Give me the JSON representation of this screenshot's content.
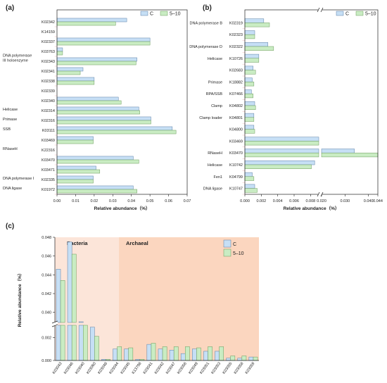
{
  "colors": {
    "C": "#c6dff5",
    "T": "#c9ecc3",
    "C_stroke": "#5b7fa6",
    "T_stroke": "#6b9a5a",
    "bacteria_bg": "#fce5d9",
    "archaea_bg": "#fbd6bf"
  },
  "chart_data": [
    {
      "panel": "(a)",
      "type": "bar",
      "orientation": "horizontal",
      "xlabel": "Relative abundance（%）",
      "xlim": [
        0,
        0.07
      ],
      "xticks": [
        "0.00",
        "0.01",
        "0.02",
        "0.03",
        "0.04",
        "0.05",
        "0.06",
        "0.07"
      ],
      "legend": [
        "C",
        "5–10"
      ],
      "legend_position": "top-right",
      "categories": [
        "K02342",
        "K14159",
        "K02337",
        "K03763",
        "K02343",
        "K02341",
        "K02338",
        "K02339",
        "K02340",
        "K02314",
        "K02316",
        "K03111",
        "K03469",
        "K22316",
        "K03470",
        "K03471",
        "K02335",
        "K01972"
      ],
      "groups": [
        {
          "label": "DNA polymerase\nIII holoenzyme",
          "at": "K02343"
        },
        {
          "label": "Helicase",
          "at": "K02314"
        },
        {
          "label": "Primase",
          "at": "K02316"
        },
        {
          "label": "SSB",
          "at": "K03111"
        },
        {
          "label": "RNaseH",
          "at": "K22316"
        },
        {
          "label": "DNA polymerase I",
          "at": "K02335"
        },
        {
          "label": "DNA ligase",
          "at": "K01972"
        }
      ],
      "series": [
        {
          "name": "C",
          "values": [
            0.0375,
            0,
            0.05,
            0.003,
            0.043,
            0.014,
            0.02,
            0,
            0.033,
            0.044,
            0.0505,
            0.062,
            0.0195,
            0,
            0.041,
            0.021,
            0.0195,
            0.041
          ]
        },
        {
          "name": "5–10",
          "values": [
            0.0315,
            0,
            0.05,
            0.003,
            0.0425,
            0.0125,
            0.02,
            0,
            0.0345,
            0.0445,
            0.0505,
            0.064,
            0.0195,
            0,
            0.044,
            0.023,
            0.0195,
            0.043
          ]
        }
      ]
    },
    {
      "panel": "(b)",
      "type": "bar",
      "orientation": "horizontal",
      "xlabel": "Relative abundance（%）",
      "axis_break": [
        0.009,
        0.02
      ],
      "xticks": [
        "0.000",
        "0.002",
        "0.004",
        "0.006",
        "0.008",
        "0.020",
        "0.030",
        "0.040",
        "0.044"
      ],
      "legend": [
        "C",
        "5–10"
      ],
      "legend_position": "top-right",
      "categories": [
        "K02319",
        "K02323",
        "K02322",
        "K10726",
        "K02683",
        "K18882",
        "K07466",
        "K04802",
        "K04801",
        "K04800",
        "K03469",
        "K03470",
        "K10742",
        "K04799",
        "K10747"
      ],
      "groups": [
        {
          "label": "DNA polymerase B",
          "at": "K02319"
        },
        {
          "label": "DNA polymerase D",
          "at": "K02322"
        },
        {
          "label": "Helicase",
          "at": "K10726"
        },
        {
          "label": "Primase",
          "at": "K18882"
        },
        {
          "label": "RPA/SSB",
          "at": "K07466"
        },
        {
          "label": "Clamp",
          "at": "K04802"
        },
        {
          "label": "Clamp loader",
          "at": "K04801"
        },
        {
          "label": "RNaseH",
          "at": "K03470"
        },
        {
          "label": "Helicase",
          "at": "K10742"
        },
        {
          "label": "Fen1",
          "at": "K04799"
        },
        {
          "label": "DNA ligase",
          "at": "K10747"
        }
      ],
      "series": [
        {
          "name": "C",
          "values": [
            0.0023,
            0.0012,
            0.0028,
            0.0017,
            0.001,
            0.0009,
            0.0008,
            0.0012,
            0.0011,
            0.0011,
            0.0094,
            0.034,
            0.0085,
            0.0009,
            0.0012
          ]
        },
        {
          "name": "5–10",
          "values": [
            0.003,
            0.0012,
            0.0035,
            0.0017,
            0.0013,
            0.0011,
            0.001,
            0.0013,
            0.0011,
            0.0012,
            0.0096,
            0.044,
            0.0081,
            0.0011,
            0.0015
          ]
        }
      ]
    },
    {
      "panel": "(c)",
      "type": "bar",
      "orientation": "vertical",
      "ylabel": "Relative abundance（%）",
      "axis_break": [
        0.003,
        0.039
      ],
      "yticks": [
        "0.000",
        "0.002",
        "0.040",
        "0.042",
        "0.044",
        "0.046",
        "0.048"
      ],
      "legend": [
        "C",
        "5–10"
      ],
      "legend_position": "top-right",
      "regions": [
        "Bacteria",
        "Archaeal"
      ],
      "bacteria_count": 6,
      "categories": [
        "K03043",
        "K03046",
        "K03040",
        "K03060",
        "K03048",
        "K03044",
        "K03045",
        "K13798",
        "K03041",
        "K03042",
        "K03047",
        "K03056",
        "K03049",
        "K03051",
        "K03053",
        "K03055",
        "K03058",
        "K03059"
      ],
      "series": [
        {
          "name": "C",
          "values": [
            0.0446,
            0.0475,
            0.039,
            0.0029,
            0.0001,
            0.001,
            0.001,
            0.0001,
            0.0014,
            0.001,
            0.0009,
            0.0006,
            0.001,
            0.0008,
            0.0008,
            0.0002,
            0.0002,
            0.0003
          ]
        },
        {
          "name": "5–10",
          "values": [
            0.0434,
            0.0462,
            0.0388,
            0.0021,
            0.0001,
            0.0012,
            0.0011,
            0.0001,
            0.0015,
            0.0012,
            0.0012,
            0.0012,
            0.0011,
            0.0012,
            0.0012,
            0.0004,
            0.0004,
            0.0003
          ]
        }
      ]
    }
  ]
}
